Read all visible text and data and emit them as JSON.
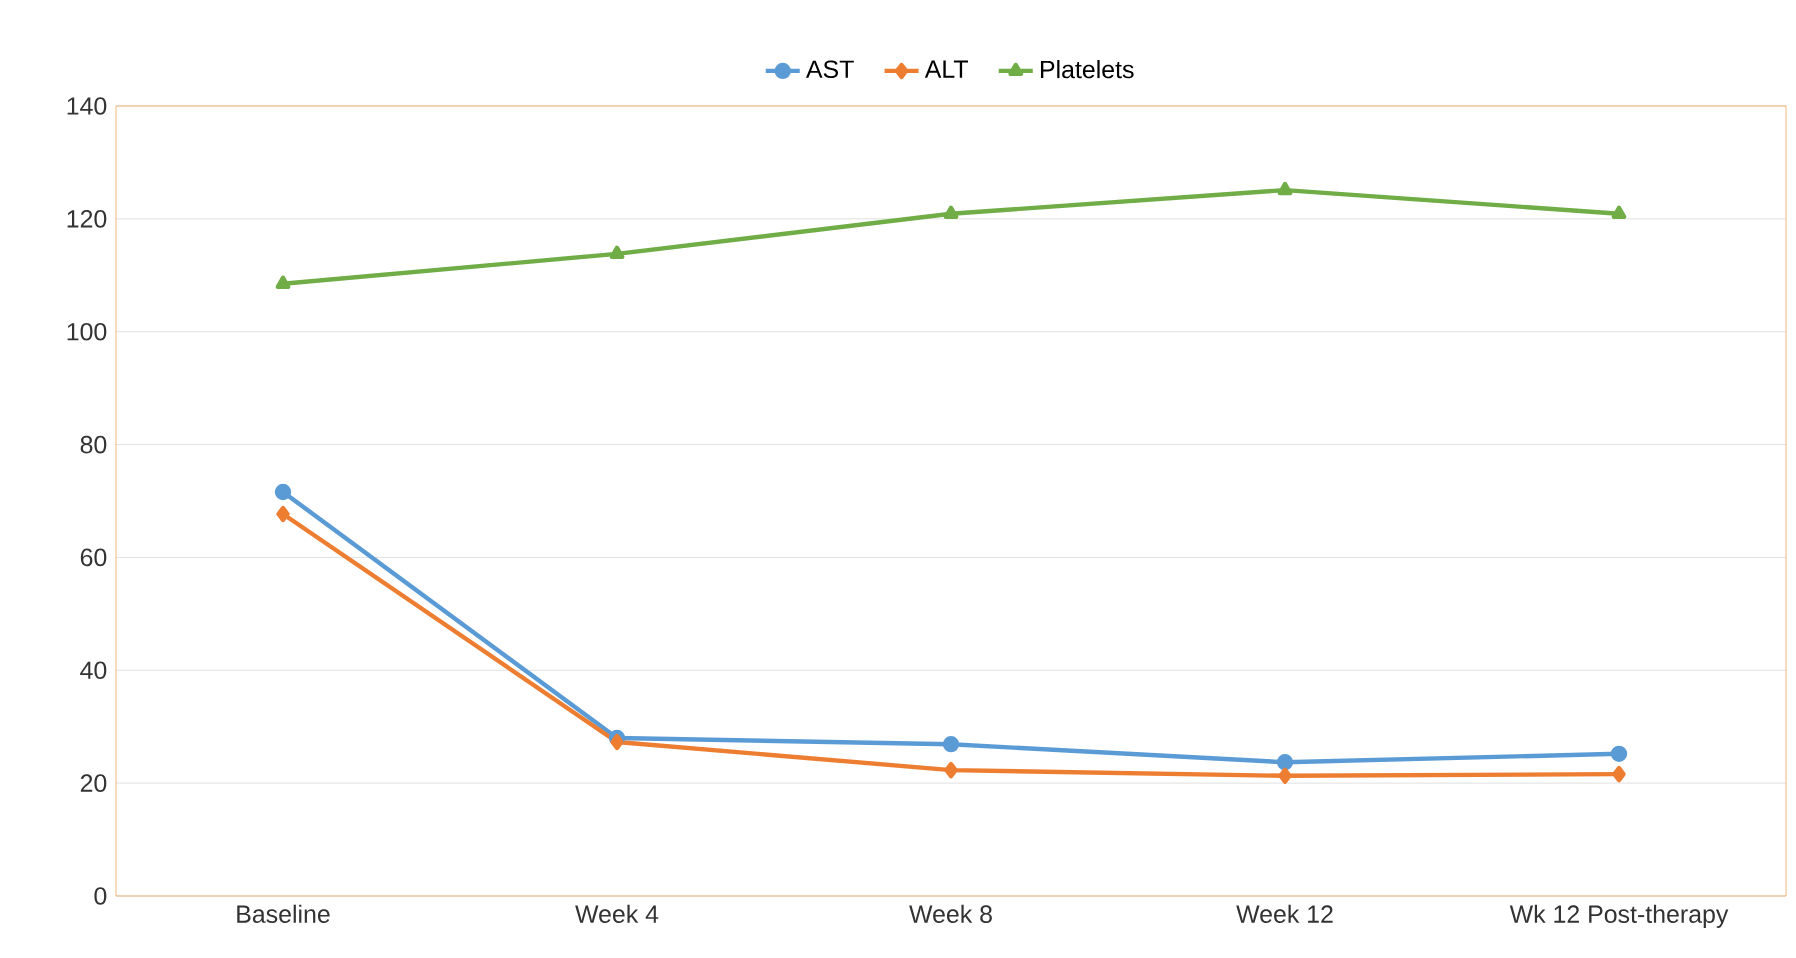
{
  "chart_data": {
    "type": "line",
    "categories": [
      "Baseline",
      "Week 4",
      "Week 8",
      "Week 12",
      "Wk 12 Post-therapy"
    ],
    "series": [
      {
        "name": "AST",
        "color": "#5b9bd5",
        "marker": "circle",
        "values": [
          71.6,
          28,
          26.9,
          23.7,
          25.2
        ]
      },
      {
        "name": "ALT",
        "color": "#ed7d31",
        "marker": "diamond",
        "values": [
          67.7,
          27.3,
          22.3,
          21.3,
          21.6
        ]
      },
      {
        "name": "Platelets",
        "color": "#70ad47",
        "marker": "triangle",
        "values": [
          108.5,
          113.8,
          120.9,
          125.1,
          120.9
        ]
      }
    ],
    "ylim": [
      0,
      140
    ],
    "yticks": [
      0,
      20,
      40,
      60,
      80,
      100,
      120,
      140
    ],
    "grid": "y",
    "legend": "top",
    "line_style": "solid"
  }
}
